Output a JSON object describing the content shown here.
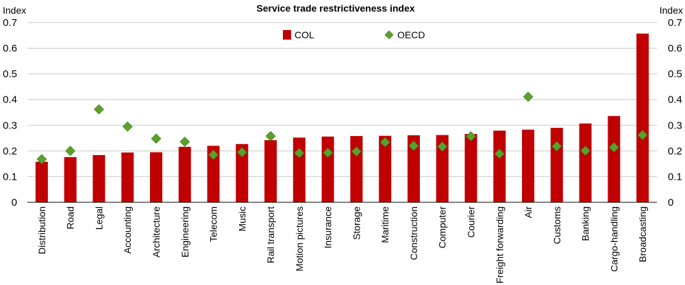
{
  "chart_data": {
    "type": "bar",
    "title": "Service trade restrictiveness index",
    "ylabel_left": "Index",
    "ylabel_right": "Index",
    "ylim": [
      0,
      0.7
    ],
    "yticks": [
      0,
      0.1,
      0.2,
      0.3,
      0.4,
      0.5,
      0.6,
      0.7
    ],
    "ytick_labels": [
      "0",
      "0.1",
      "0.2",
      "0.3",
      "0.4",
      "0.5",
      "0.6",
      "0.7"
    ],
    "grid": true,
    "legend_position": "top-center",
    "categories": [
      "Distribution",
      "Road",
      "Legal",
      "Accounting",
      "Architecture",
      "Engineering",
      "Telecom",
      "Music",
      "Rail transport",
      "Motion pictures",
      "Insurance",
      "Storage",
      "Maritime",
      "Construction",
      "Computer",
      "Courier",
      "Freight forwarding",
      "Air",
      "Customs",
      "Banking",
      "Cargo-handling",
      "Broadcasting"
    ],
    "series": [
      {
        "name": "COL",
        "kind": "bar",
        "color": "#c00000",
        "values": [
          0.158,
          0.176,
          0.184,
          0.194,
          0.195,
          0.216,
          0.22,
          0.227,
          0.242,
          0.252,
          0.256,
          0.258,
          0.259,
          0.261,
          0.262,
          0.266,
          0.279,
          0.283,
          0.29,
          0.307,
          0.336,
          0.657
        ]
      },
      {
        "name": "OECD",
        "kind": "marker",
        "color": "#5aa02c",
        "values": [
          0.168,
          0.2,
          0.362,
          0.295,
          0.248,
          0.236,
          0.185,
          0.195,
          0.258,
          0.192,
          0.193,
          0.198,
          0.234,
          0.22,
          0.217,
          0.257,
          0.189,
          0.411,
          0.218,
          0.201,
          0.214,
          0.262
        ]
      }
    ]
  }
}
